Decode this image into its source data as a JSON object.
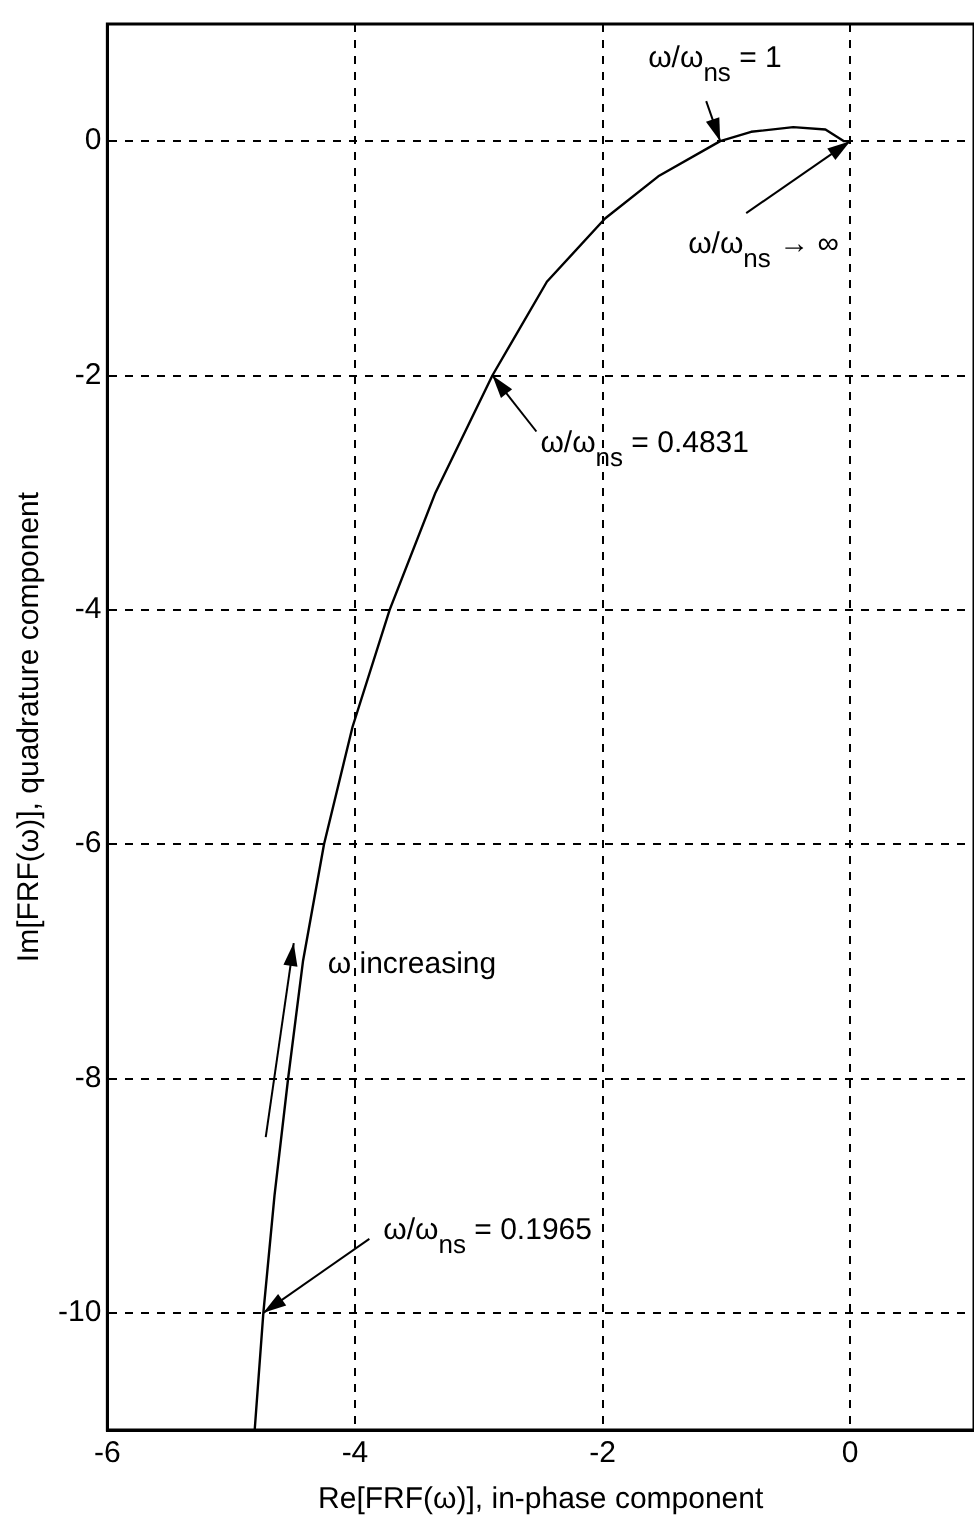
{
  "chart_data": {
    "type": "line",
    "xlabel": "Re[FRF(ω)], in-phase component",
    "ylabel": "Im[FRF(ω)], quadrature component",
    "xlim": [
      -6,
      1
    ],
    "ylim": [
      -11,
      1
    ],
    "xticks": [
      -6,
      -4,
      -2,
      0
    ],
    "yticks": [
      0,
      -2,
      -4,
      -6,
      -8,
      -10
    ],
    "grid": true,
    "legend": false,
    "marker": "none",
    "line_style": "solid",
    "series": [
      {
        "color": "#000000",
        "x": [
          -4.81,
          -4.74,
          -4.65,
          -4.54,
          -4.42,
          -4.25,
          -4.02,
          -3.72,
          -3.35,
          -2.89,
          -2.45,
          -1.98,
          -1.55,
          -1.05,
          -0.8,
          -0.46,
          -0.2,
          -0.05,
          0
        ],
        "values": [
          -11,
          -10,
          -9,
          -8,
          -7,
          -6,
          -5,
          -4,
          -3,
          -2,
          -1.2,
          -0.66,
          -0.3,
          0,
          0.08,
          0.12,
          0.1,
          0,
          0
        ]
      }
    ],
    "annotations": [
      {
        "text": "ω/ω$_{ns}$ = 1",
        "x": -1.05,
        "y": 0
      },
      {
        "text": "ω/ω$_{ns}$ → ∞",
        "x": 0,
        "y": 0
      },
      {
        "text": "ω/ω$_{ns}$ = 0.4831",
        "x": -2.89,
        "y": -2
      },
      {
        "text": "ω/ω$_{ns}$ = 0.1965",
        "x": -4.74,
        "y": -10
      },
      "ω increasing"
    ]
  }
}
